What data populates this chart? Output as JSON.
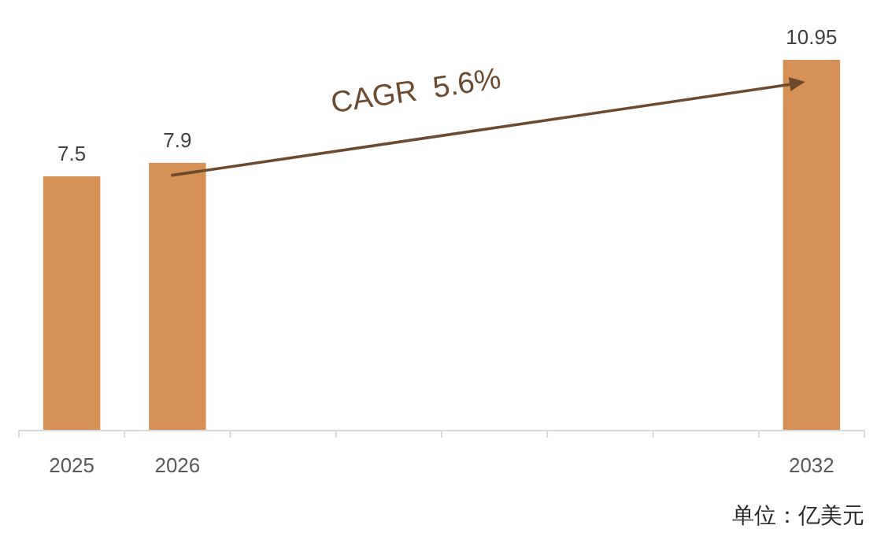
{
  "chart_data": {
    "type": "bar",
    "categories": [
      "2025",
      "2026",
      null,
      null,
      null,
      null,
      null,
      "2032"
    ],
    "values": [
      7.5,
      7.9,
      null,
      null,
      null,
      null,
      null,
      10.95
    ],
    "color": "#d69157",
    "data_labels": true,
    "annotations": [
      "CAGR  5.6%",
      "单位：亿美元"
    ]
  }
}
